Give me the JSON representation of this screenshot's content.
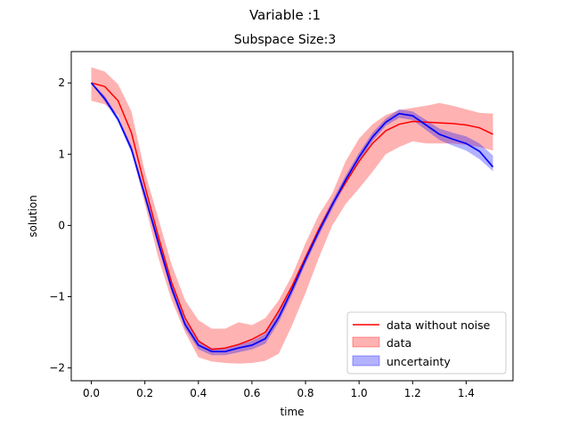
{
  "chart_data": {
    "type": "line",
    "suptitle": "Variable :1",
    "title": "Subspace Size:3",
    "xlabel": "time",
    "ylabel": "solution",
    "xlim": [
      -0.075,
      1.575
    ],
    "ylim": [
      -2.18,
      2.44
    ],
    "x_ticks": [
      0.0,
      0.2,
      0.4,
      0.6,
      0.8,
      1.0,
      1.2,
      1.4
    ],
    "x_tick_labels": [
      "0.0",
      "0.2",
      "0.4",
      "0.6",
      "0.8",
      "1.0",
      "1.2",
      "1.4"
    ],
    "y_ticks": [
      -2,
      -1,
      0,
      1,
      2
    ],
    "y_tick_labels": [
      "−2",
      "−1",
      "0",
      "1",
      "2"
    ],
    "x": [
      0.0,
      0.05,
      0.1,
      0.15,
      0.2,
      0.25,
      0.3,
      0.35,
      0.4,
      0.45,
      0.5,
      0.55,
      0.6,
      0.65,
      0.7,
      0.75,
      0.8,
      0.85,
      0.9,
      0.95,
      1.0,
      1.05,
      1.1,
      1.15,
      1.2,
      1.25,
      1.3,
      1.35,
      1.4,
      1.45,
      1.5
    ],
    "series": [
      {
        "name": "data without noise",
        "kind": "line",
        "color": "#ff0000",
        "values": [
          2.0,
          1.95,
          1.75,
          1.3,
          0.55,
          -0.15,
          -0.8,
          -1.3,
          -1.62,
          -1.74,
          -1.72,
          -1.67,
          -1.6,
          -1.5,
          -1.2,
          -0.85,
          -0.45,
          -0.05,
          0.3,
          0.6,
          0.9,
          1.15,
          1.33,
          1.42,
          1.46,
          1.45,
          1.44,
          1.43,
          1.41,
          1.37,
          1.28
        ]
      },
      {
        "name": "data",
        "kind": "band",
        "color": "#ff0000",
        "opacity": 0.3,
        "upper": [
          2.22,
          2.16,
          1.98,
          1.6,
          0.75,
          0.1,
          -0.55,
          -1.05,
          -1.33,
          -1.45,
          -1.45,
          -1.36,
          -1.4,
          -1.3,
          -1.05,
          -0.7,
          -0.25,
          0.15,
          0.45,
          0.9,
          1.22,
          1.42,
          1.55,
          1.62,
          1.65,
          1.68,
          1.72,
          1.68,
          1.63,
          1.58,
          1.57
        ],
        "lower": [
          1.75,
          1.7,
          1.55,
          1.05,
          0.3,
          -0.45,
          -1.05,
          -1.5,
          -1.85,
          -1.91,
          -1.93,
          -1.94,
          -1.93,
          -1.9,
          -1.8,
          -1.4,
          -0.95,
          -0.45,
          0.0,
          0.3,
          0.52,
          0.75,
          1.0,
          1.1,
          1.18,
          1.15,
          1.15,
          1.15,
          1.13,
          1.1,
          1.05
        ]
      },
      {
        "name": "uncertainty",
        "kind": "band",
        "color": "#0000ff",
        "opacity": 0.3,
        "upper": [
          2.01,
          1.82,
          1.53,
          1.12,
          0.48,
          -0.18,
          -0.82,
          -1.33,
          -1.62,
          -1.72,
          -1.72,
          -1.67,
          -1.62,
          -1.52,
          -1.22,
          -0.83,
          -0.42,
          -0.02,
          0.35,
          0.7,
          1.02,
          1.3,
          1.5,
          1.63,
          1.6,
          1.48,
          1.36,
          1.3,
          1.25,
          1.15,
          0.98
        ],
        "lower": [
          1.99,
          1.74,
          1.45,
          1.02,
          0.36,
          -0.3,
          -0.94,
          -1.45,
          -1.74,
          -1.82,
          -1.82,
          -1.78,
          -1.74,
          -1.66,
          -1.36,
          -0.97,
          -0.54,
          -0.14,
          0.23,
          0.58,
          0.9,
          1.18,
          1.4,
          1.51,
          1.48,
          1.34,
          1.2,
          1.12,
          1.05,
          0.93,
          0.76
        ]
      },
      {
        "name": "",
        "kind": "line",
        "color": "#0000ff",
        "values": [
          2.0,
          1.78,
          1.49,
          1.07,
          0.42,
          -0.24,
          -0.88,
          -1.39,
          -1.68,
          -1.77,
          -1.77,
          -1.72,
          -1.68,
          -1.59,
          -1.29,
          -0.9,
          -0.48,
          -0.08,
          0.29,
          0.64,
          0.96,
          1.24,
          1.45,
          1.57,
          1.54,
          1.41,
          1.28,
          1.21,
          1.15,
          1.04,
          0.82
        ]
      }
    ],
    "legend": {
      "position": "lower right",
      "entries": [
        "data without noise",
        "data",
        "uncertainty"
      ]
    },
    "grid": false
  }
}
